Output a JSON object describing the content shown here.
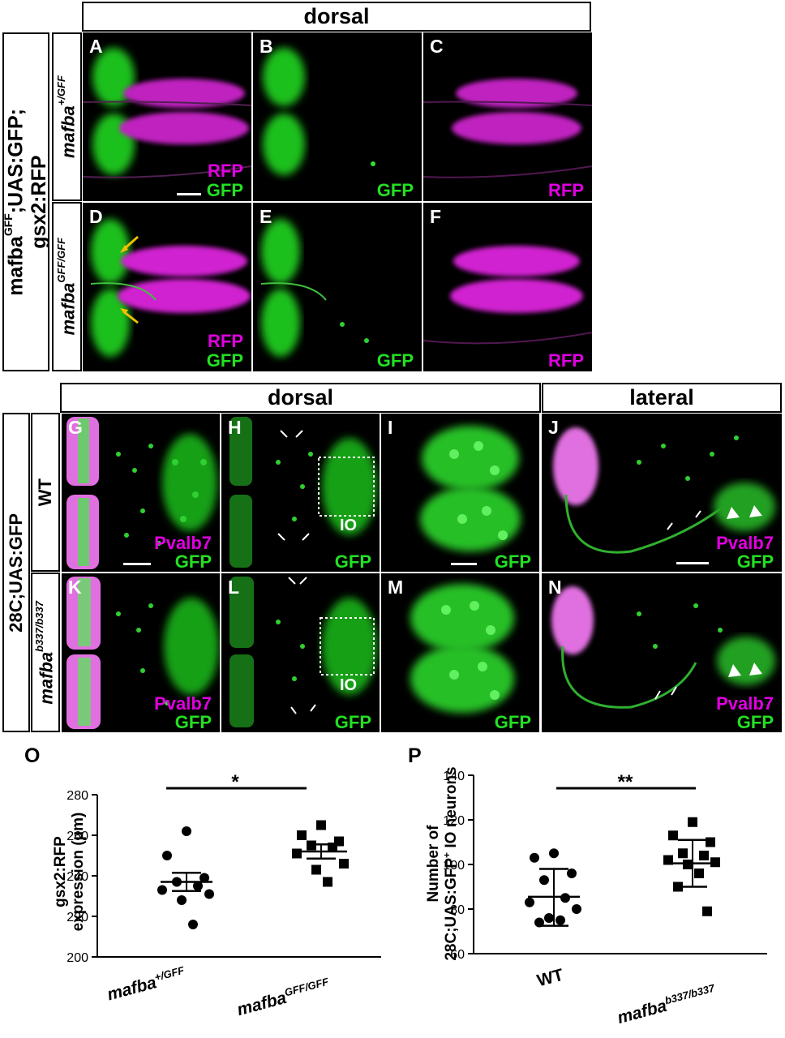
{
  "top": {
    "header": "dorsal",
    "genotype_label_line1": "mafba",
    "genotype_label_sup": "GFF",
    "genotype_label_line1_rest": ";UAS:GFP;",
    "genotype_label_line2": "gsx2:RFP",
    "row1_label": "mafba",
    "row1_sup": "+/GFF",
    "row2_label": "mafba",
    "row2_sup": "GFF/GFF",
    "panels": [
      {
        "letter": "A",
        "label1": "RFP",
        "label2": "GFP"
      },
      {
        "letter": "B",
        "label2": "GFP"
      },
      {
        "letter": "C",
        "label1": "RFP"
      },
      {
        "letter": "D",
        "label1": "RFP",
        "label2": "GFP"
      },
      {
        "letter": "E",
        "label2": "GFP"
      },
      {
        "letter": "F",
        "label1": "RFP"
      }
    ]
  },
  "bottom": {
    "header_dorsal": "dorsal",
    "header_lateral": "lateral",
    "genotype_label": "28C;UAS:GFP",
    "row1_label": "WT",
    "row2_label": "mafba",
    "row2_sup": "b337/b337",
    "io_label": "IO",
    "panels": [
      {
        "letter": "G",
        "label1": "Pvalb7",
        "label2": "GFP"
      },
      {
        "letter": "H",
        "label2": "GFP"
      },
      {
        "letter": "I",
        "label2": "GFP"
      },
      {
        "letter": "J",
        "label1": "Pvalb7",
        "label2": "GFP"
      },
      {
        "letter": "K",
        "label1": "Pvalb7",
        "label2": "GFP"
      },
      {
        "letter": "L",
        "label2": "GFP"
      },
      {
        "letter": "M",
        "label2": "GFP"
      },
      {
        "letter": "N",
        "label1": "Pvalb7",
        "label2": "GFP"
      }
    ]
  },
  "chart_O": {
    "letter": "O",
    "ylabel_line1": "gsx2:RFP",
    "ylabel_line2": "expression (μm)",
    "significance": "*",
    "cat1": "mafba",
    "cat1_sup": "+/GFF",
    "cat2": "mafba",
    "cat2_sup": "GFF/GFF"
  },
  "chart_P": {
    "letter": "P",
    "ylabel_line1": "Number of",
    "ylabel_line2_a": "28C;UAS:GFP",
    "ylabel_line2_sup": "+",
    "ylabel_line2_b": " IO neurons",
    "significance": "**",
    "cat1": "WT",
    "cat2": "mafba",
    "cat2_sup": "b337/b337"
  },
  "chart_data": [
    {
      "type": "scatter",
      "categories": [
        "mafba+/GFF",
        "mafbaGFF/GFF"
      ],
      "ylim": [
        200,
        280
      ],
      "yticks": [
        200,
        220,
        240,
        260,
        280
      ],
      "series": [
        {
          "values": [
            262,
            250,
            239,
            237,
            235,
            233,
            231,
            228,
            216
          ],
          "mean": 237,
          "err_low": 232.5,
          "err_high": 241.5
        },
        {
          "values": [
            265,
            260,
            257,
            255,
            254,
            251,
            246,
            243,
            237
          ],
          "mean": 252,
          "err_low": 248.5,
          "err_high": 255.5
        }
      ]
    },
    {
      "type": "scatter",
      "categories": [
        "WT",
        "mafbab337/b337"
      ],
      "ylim": [
        60,
        140
      ],
      "yticks": [
        60,
        80,
        100,
        120,
        140
      ],
      "series": [
        {
          "values": [
            105,
            103,
            96,
            93,
            85,
            83,
            80,
            76,
            75,
            74
          ],
          "mean": 85.5,
          "err_low": 72.5,
          "err_high": 98
        },
        {
          "values": [
            119,
            113,
            110,
            105,
            104,
            102,
            101,
            100,
            96,
            90,
            79
          ],
          "mean": 100.5,
          "err_low": 90,
          "err_high": 111
        }
      ]
    }
  ]
}
